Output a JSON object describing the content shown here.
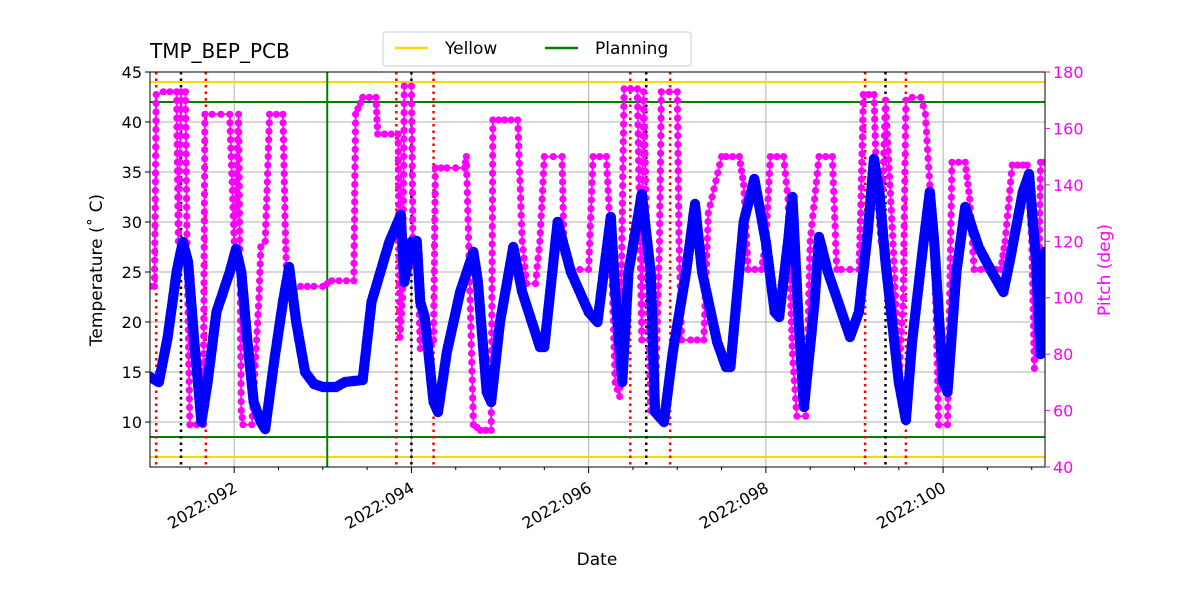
{
  "chart_data": {
    "type": "line",
    "title": "TMP_BEP_PCB",
    "xlabel": "Date",
    "ylabel_left": "Temperature ($^\\circ$C)",
    "ylabel_left_display": "Temperature (˚ C)",
    "ylabel_right": "Pitch (deg)",
    "x_range_days": [
      91.05,
      101.15
    ],
    "ylim_left": [
      5.5,
      45
    ],
    "ylim_right": [
      40,
      180
    ],
    "x_ticks": [
      {
        "day": 92,
        "label": "2022:092"
      },
      {
        "day": 94,
        "label": "2022:094"
      },
      {
        "day": 96,
        "label": "2022:096"
      },
      {
        "day": 98,
        "label": "2022:098"
      },
      {
        "day": 100,
        "label": "2022:100"
      }
    ],
    "x_minor_ticks": [
      91.5,
      92.5,
      93,
      93.5,
      94.5,
      95,
      95.5,
      96.5,
      97,
      97.5,
      98.5,
      99,
      99.5,
      100.5,
      101
    ],
    "y_ticks_left": [
      10,
      15,
      20,
      25,
      30,
      35,
      40,
      45
    ],
    "y_ticks_right": [
      40,
      60,
      80,
      100,
      120,
      140,
      160,
      180
    ],
    "legend": {
      "position": "top-center-above",
      "entries": [
        {
          "label": "Yellow",
          "color": "#FFD700"
        },
        {
          "label": "Planning",
          "color": "#008000"
        }
      ]
    },
    "limit_lines": [
      {
        "name": "yellow_hi",
        "value": 44,
        "color": "#FFD700"
      },
      {
        "name": "yellow_lo",
        "value": 6.5,
        "color": "#FFD700"
      },
      {
        "name": "planning_hi",
        "value": 42,
        "color": "#008000"
      },
      {
        "name": "planning_lo",
        "value": 8.5,
        "color": "#008000"
      }
    ],
    "vertical_marker": {
      "day": 93.05,
      "color": "#008000"
    },
    "red_dotted_days": [
      91.12,
      91.68,
      93.83,
      94.25,
      96.47,
      96.92,
      99.12,
      99.58
    ],
    "black_dotted_days": [
      91.4,
      94.0,
      96.65,
      99.35
    ],
    "series": [
      {
        "name": "Temperature",
        "axis": "left",
        "color": "#0000FF",
        "points": [
          [
            91.05,
            14.5
          ],
          [
            91.15,
            14.0
          ],
          [
            91.25,
            18.5
          ],
          [
            91.35,
            25.0
          ],
          [
            91.42,
            28.0
          ],
          [
            91.48,
            26.0
          ],
          [
            91.55,
            18.0
          ],
          [
            91.63,
            10.0
          ],
          [
            91.7,
            14.0
          ],
          [
            91.8,
            21.0
          ],
          [
            91.95,
            25.0
          ],
          [
            92.02,
            27.3
          ],
          [
            92.08,
            25.0
          ],
          [
            92.15,
            18.0
          ],
          [
            92.22,
            12.0
          ],
          [
            92.3,
            10.0
          ],
          [
            92.35,
            9.3
          ],
          [
            92.45,
            16.0
          ],
          [
            92.55,
            22.0
          ],
          [
            92.62,
            25.5
          ],
          [
            92.7,
            20.0
          ],
          [
            92.8,
            15.0
          ],
          [
            92.9,
            13.8
          ],
          [
            93.0,
            13.5
          ],
          [
            93.15,
            13.5
          ],
          [
            93.25,
            14.0
          ],
          [
            93.45,
            14.2
          ],
          [
            93.55,
            22.0
          ],
          [
            93.75,
            28.0
          ],
          [
            93.88,
            30.7
          ],
          [
            93.92,
            24.0
          ],
          [
            94.0,
            28.0
          ],
          [
            94.06,
            28.1
          ],
          [
            94.1,
            22.0
          ],
          [
            94.15,
            20.5
          ],
          [
            94.25,
            12.0
          ],
          [
            94.3,
            11.0
          ],
          [
            94.4,
            17.0
          ],
          [
            94.55,
            23.0
          ],
          [
            94.7,
            27.0
          ],
          [
            94.75,
            24.0
          ],
          [
            94.85,
            13.0
          ],
          [
            94.9,
            12.0
          ],
          [
            95.0,
            20.0
          ],
          [
            95.15,
            27.5
          ],
          [
            95.25,
            23.0
          ],
          [
            95.45,
            17.5
          ],
          [
            95.5,
            17.5
          ],
          [
            95.65,
            30.0
          ],
          [
            95.8,
            25.0
          ],
          [
            96.0,
            21.0
          ],
          [
            96.1,
            20.0
          ],
          [
            96.25,
            30.5
          ],
          [
            96.3,
            23.0
          ],
          [
            96.38,
            14.0
          ],
          [
            96.45,
            25.0
          ],
          [
            96.6,
            32.8
          ],
          [
            96.7,
            25.0
          ],
          [
            96.75,
            11.0
          ],
          [
            96.85,
            10.0
          ],
          [
            96.95,
            17.0
          ],
          [
            97.1,
            25.0
          ],
          [
            97.2,
            31.8
          ],
          [
            97.28,
            25.0
          ],
          [
            97.45,
            18.0
          ],
          [
            97.55,
            15.5
          ],
          [
            97.6,
            15.5
          ],
          [
            97.75,
            30.0
          ],
          [
            97.87,
            34.3
          ],
          [
            98.0,
            28.0
          ],
          [
            98.1,
            21.0
          ],
          [
            98.15,
            20.5
          ],
          [
            98.25,
            28.0
          ],
          [
            98.3,
            32.5
          ],
          [
            98.37,
            20.0
          ],
          [
            98.43,
            11.5
          ],
          [
            98.55,
            22.0
          ],
          [
            98.6,
            28.5
          ],
          [
            98.7,
            25.0
          ],
          [
            98.95,
            18.5
          ],
          [
            99.05,
            21.0
          ],
          [
            99.15,
            29.0
          ],
          [
            99.22,
            36.3
          ],
          [
            99.28,
            33.0
          ],
          [
            99.35,
            26.0
          ],
          [
            99.5,
            14.0
          ],
          [
            99.58,
            10.2
          ],
          [
            99.65,
            18.0
          ],
          [
            99.78,
            28.0
          ],
          [
            99.85,
            33.0
          ],
          [
            99.9,
            28.0
          ],
          [
            100.0,
            14.0
          ],
          [
            100.05,
            13.0
          ],
          [
            100.15,
            25.0
          ],
          [
            100.25,
            31.5
          ],
          [
            100.4,
            27.5
          ],
          [
            100.55,
            25.0
          ],
          [
            100.68,
            23.0
          ],
          [
            100.75,
            26.0
          ],
          [
            100.9,
            33.0
          ],
          [
            100.97,
            34.8
          ],
          [
            101.05,
            26.0
          ],
          [
            101.1,
            16.8
          ],
          [
            101.15,
            27.0
          ]
        ]
      },
      {
        "name": "Pitch",
        "axis": "right",
        "color": "#FF00FF",
        "points": [
          [
            91.05,
            104
          ],
          [
            91.1,
            104
          ],
          [
            91.12,
            172
          ],
          [
            91.2,
            173
          ],
          [
            91.35,
            173
          ],
          [
            91.37,
            120
          ],
          [
            91.4,
            173
          ],
          [
            91.45,
            173
          ],
          [
            91.47,
            110
          ],
          [
            91.5,
            55
          ],
          [
            91.65,
            55
          ],
          [
            91.67,
            165
          ],
          [
            91.75,
            165
          ],
          [
            91.95,
            165
          ],
          [
            92.0,
            120
          ],
          [
            92.05,
            165
          ],
          [
            92.08,
            60
          ],
          [
            92.1,
            55
          ],
          [
            92.2,
            55
          ],
          [
            92.28,
            100
          ],
          [
            92.3,
            118
          ],
          [
            92.35,
            120
          ],
          [
            92.4,
            165
          ],
          [
            92.55,
            165
          ],
          [
            92.58,
            120
          ],
          [
            92.6,
            100
          ],
          [
            92.75,
            104
          ],
          [
            92.9,
            104
          ],
          [
            93.0,
            104
          ],
          [
            93.1,
            106
          ],
          [
            93.35,
            106
          ],
          [
            93.37,
            165
          ],
          [
            93.45,
            171
          ],
          [
            93.6,
            171
          ],
          [
            93.62,
            158
          ],
          [
            93.85,
            158
          ],
          [
            93.87,
            86
          ],
          [
            93.9,
            100
          ],
          [
            93.92,
            175
          ],
          [
            94.0,
            175
          ],
          [
            94.02,
            112
          ],
          [
            94.07,
            115
          ],
          [
            94.1,
            82
          ],
          [
            94.2,
            82
          ],
          [
            94.25,
            85
          ],
          [
            94.27,
            146
          ],
          [
            94.4,
            146
          ],
          [
            94.6,
            146
          ],
          [
            94.62,
            150
          ],
          [
            94.65,
            115
          ],
          [
            94.7,
            55
          ],
          [
            94.78,
            53
          ],
          [
            94.9,
            53
          ],
          [
            94.92,
            163
          ],
          [
            95.05,
            163
          ],
          [
            95.2,
            163
          ],
          [
            95.25,
            120
          ],
          [
            95.3,
            105
          ],
          [
            95.4,
            105
          ],
          [
            95.45,
            120
          ],
          [
            95.5,
            150
          ],
          [
            95.7,
            150
          ],
          [
            95.72,
            120
          ],
          [
            95.8,
            110
          ],
          [
            96.0,
            110
          ],
          [
            96.05,
            150
          ],
          [
            96.2,
            150
          ],
          [
            96.25,
            120
          ],
          [
            96.3,
            70
          ],
          [
            96.35,
            65
          ],
          [
            96.4,
            174
          ],
          [
            96.55,
            174
          ],
          [
            96.58,
            120
          ],
          [
            96.6,
            85
          ],
          [
            96.62,
            173
          ],
          [
            96.7,
            60
          ],
          [
            96.75,
            60
          ],
          [
            96.8,
            120
          ],
          [
            96.82,
            173
          ],
          [
            97.0,
            173
          ],
          [
            97.02,
            120
          ],
          [
            97.05,
            85
          ],
          [
            97.15,
            85
          ],
          [
            97.3,
            85
          ],
          [
            97.35,
            130
          ],
          [
            97.5,
            150
          ],
          [
            97.55,
            150
          ],
          [
            97.7,
            150
          ],
          [
            97.75,
            140
          ],
          [
            97.8,
            110
          ],
          [
            97.95,
            110
          ],
          [
            98.0,
            120
          ],
          [
            98.05,
            150
          ],
          [
            98.2,
            150
          ],
          [
            98.25,
            135
          ],
          [
            98.28,
            100
          ],
          [
            98.3,
            80
          ],
          [
            98.35,
            58
          ],
          [
            98.45,
            58
          ],
          [
            98.5,
            120
          ],
          [
            98.6,
            150
          ],
          [
            98.75,
            150
          ],
          [
            98.8,
            110
          ],
          [
            98.85,
            110
          ],
          [
            99.05,
            110
          ],
          [
            99.07,
            130
          ],
          [
            99.1,
            172
          ],
          [
            99.22,
            172
          ],
          [
            99.25,
            140
          ],
          [
            99.3,
            120
          ],
          [
            99.35,
            170
          ],
          [
            99.4,
            140
          ],
          [
            99.45,
            110
          ],
          [
            99.5,
            70
          ],
          [
            99.55,
            100
          ],
          [
            99.58,
            170
          ],
          [
            99.65,
            171
          ],
          [
            99.75,
            171
          ],
          [
            99.8,
            165
          ],
          [
            99.85,
            140
          ],
          [
            99.9,
            120
          ],
          [
            99.95,
            55
          ],
          [
            100.05,
            55
          ],
          [
            100.1,
            148
          ],
          [
            100.25,
            148
          ],
          [
            100.3,
            135
          ],
          [
            100.35,
            110
          ],
          [
            100.5,
            110
          ],
          [
            100.6,
            110
          ],
          [
            100.65,
            110
          ],
          [
            100.7,
            120
          ],
          [
            100.78,
            147
          ],
          [
            100.9,
            147
          ],
          [
            100.95,
            147
          ],
          [
            101.0,
            120
          ],
          [
            101.03,
            75
          ],
          [
            101.08,
            100
          ],
          [
            101.1,
            148
          ],
          [
            101.15,
            148
          ]
        ]
      }
    ]
  }
}
